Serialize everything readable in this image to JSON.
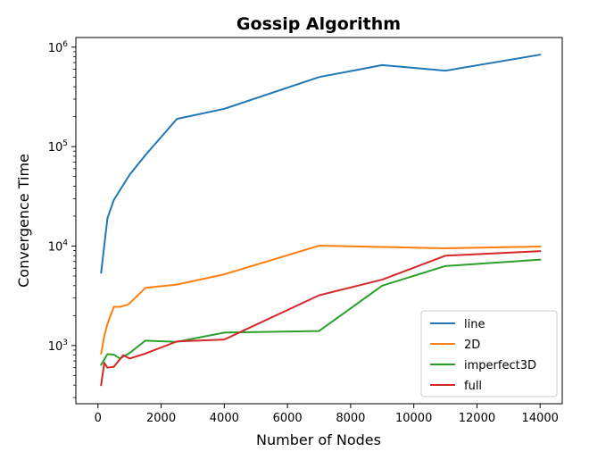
{
  "chart_data": {
    "type": "line",
    "title": "Gossip Algorithm",
    "xlabel": "Number of Nodes",
    "ylabel": "Convergence Time",
    "xlim": [
      -700,
      14700
    ],
    "ylim": [
      260,
      1250000
    ],
    "yscale": "log",
    "xticks": [
      0,
      2000,
      4000,
      6000,
      8000,
      10000,
      12000,
      14000
    ],
    "xtick_labels": [
      "0",
      "2000",
      "4000",
      "6000",
      "8000",
      "10000",
      "12000",
      "14000"
    ],
    "yticks": [
      1000,
      10000,
      100000,
      1000000
    ],
    "ytick_labels": [
      {
        "base": "10",
        "exp": "3"
      },
      {
        "base": "10",
        "exp": "4"
      },
      {
        "base": "10",
        "exp": "5"
      },
      {
        "base": "10",
        "exp": "6"
      }
    ],
    "grid": false,
    "legend_position": "lower-right",
    "series": [
      {
        "name": "line",
        "color": "#1f77b4",
        "x": [
          100,
          300,
          500,
          1000,
          1500,
          2500,
          4000,
          7000,
          9000,
          11000,
          14000
        ],
        "y": [
          5400,
          19000,
          29000,
          52000,
          82000,
          190000,
          240000,
          500000,
          660000,
          580000,
          840000
        ]
      },
      {
        "name": "2D",
        "color": "#ff7f0e",
        "x": [
          100,
          200,
          300,
          500,
          700,
          900,
          1000,
          1500,
          2500,
          4000,
          7000,
          11000,
          14000
        ],
        "y": [
          830,
          1250,
          1650,
          2450,
          2450,
          2550,
          2650,
          3800,
          4100,
          5200,
          10100,
          9500,
          9900
        ]
      },
      {
        "name": "imperfect3D",
        "color": "#2ca02c",
        "x": [
          100,
          300,
          500,
          700,
          1000,
          1500,
          2500,
          4000,
          7000,
          9000,
          11000,
          14000
        ],
        "y": [
          640,
          820,
          810,
          740,
          840,
          1120,
          1090,
          1350,
          1400,
          4000,
          6300,
          7300
        ]
      },
      {
        "name": "full",
        "color": "#d62728",
        "x": [
          100,
          200,
          300,
          500,
          800,
          1000,
          1500,
          2500,
          4000,
          7000,
          9000,
          11000,
          14000
        ],
        "y": [
          400,
          670,
          600,
          610,
          800,
          740,
          830,
          1100,
          1150,
          3200,
          4600,
          8000,
          8900
        ]
      }
    ]
  }
}
